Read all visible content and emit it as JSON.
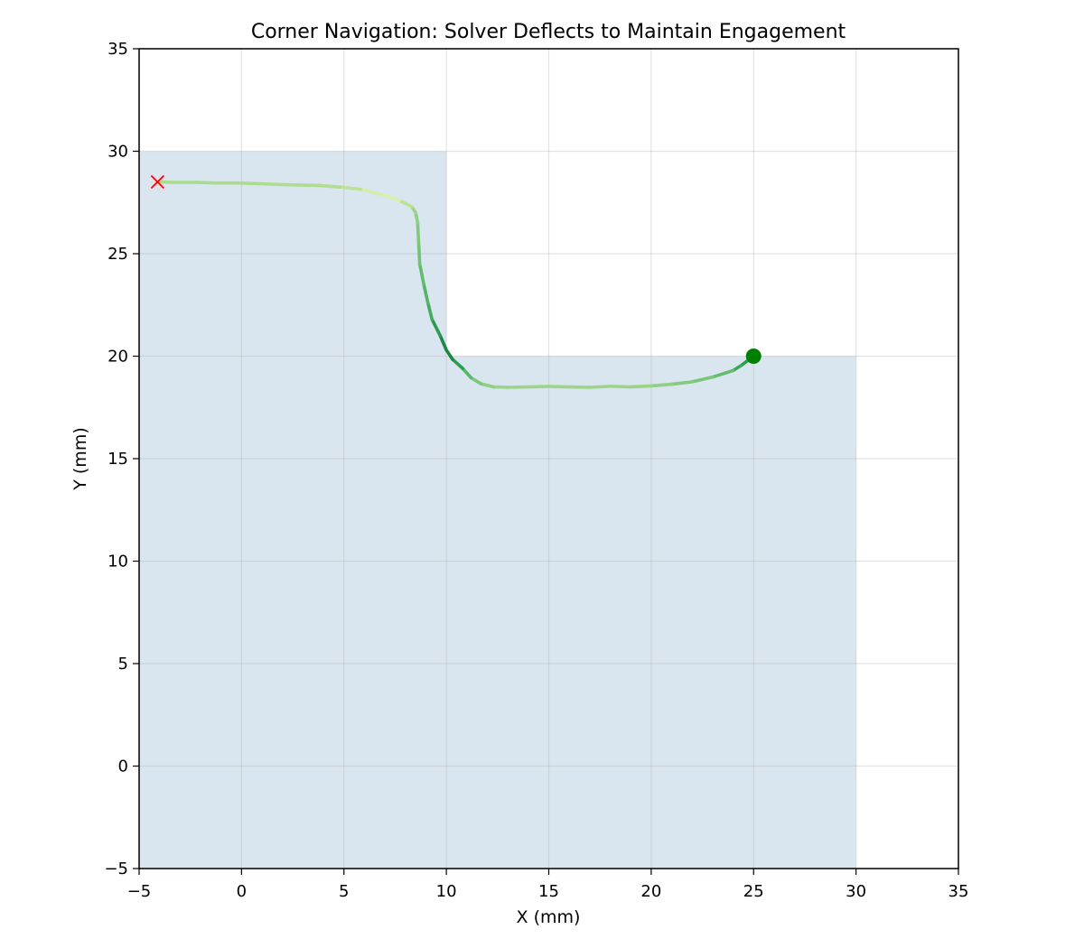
{
  "chart_data": {
    "type": "line",
    "title": "Corner Navigation: Solver Deflects to Maintain Engagement",
    "xlabel": "X (mm)",
    "ylabel": "Y (mm)",
    "xlim": [
      -5,
      35
    ],
    "ylim": [
      -5,
      35
    ],
    "xticks": [
      -5,
      0,
      5,
      10,
      15,
      20,
      25,
      30,
      35
    ],
    "yticks": [
      -5,
      0,
      5,
      10,
      15,
      20,
      25,
      30,
      35
    ],
    "xtick_labels": [
      "−5",
      "0",
      "5",
      "10",
      "15",
      "20",
      "25",
      "30",
      "35"
    ],
    "ytick_labels": [
      "−5",
      "0",
      "5",
      "10",
      "15",
      "20",
      "25",
      "30",
      "35"
    ],
    "grid": true,
    "region": {
      "color": "#c4d6e5",
      "polygon": [
        [
          -5,
          -5
        ],
        [
          30,
          -5
        ],
        [
          30,
          20
        ],
        [
          10,
          20
        ],
        [
          10,
          30
        ],
        [
          -5,
          30
        ]
      ]
    },
    "path": {
      "colormap": [
        "#ffffcc",
        "#c2e699",
        "#78c679",
        "#31a354",
        "#006837"
      ],
      "points": [
        {
          "x": 25.0,
          "y": 20.0,
          "v": 0.75
        },
        {
          "x": 24.4,
          "y": 19.55,
          "v": 0.8
        },
        {
          "x": 24.0,
          "y": 19.3,
          "v": 0.62
        },
        {
          "x": 23.0,
          "y": 18.98,
          "v": 0.52
        },
        {
          "x": 22.0,
          "y": 18.75,
          "v": 0.48
        },
        {
          "x": 21.0,
          "y": 18.63,
          "v": 0.44
        },
        {
          "x": 20.0,
          "y": 18.55,
          "v": 0.4
        },
        {
          "x": 19.0,
          "y": 18.5,
          "v": 0.38
        },
        {
          "x": 18.0,
          "y": 18.53,
          "v": 0.38
        },
        {
          "x": 17.0,
          "y": 18.48,
          "v": 0.38
        },
        {
          "x": 16.0,
          "y": 18.5,
          "v": 0.38
        },
        {
          "x": 15.0,
          "y": 18.52,
          "v": 0.38
        },
        {
          "x": 14.0,
          "y": 18.5,
          "v": 0.38
        },
        {
          "x": 13.0,
          "y": 18.48,
          "v": 0.38
        },
        {
          "x": 12.3,
          "y": 18.5,
          "v": 0.4
        },
        {
          "x": 11.7,
          "y": 18.65,
          "v": 0.45
        },
        {
          "x": 11.2,
          "y": 18.95,
          "v": 0.52
        },
        {
          "x": 10.8,
          "y": 19.4,
          "v": 0.7
        },
        {
          "x": 10.3,
          "y": 19.85,
          "v": 0.85
        },
        {
          "x": 10.0,
          "y": 20.3,
          "v": 0.88
        },
        {
          "x": 9.7,
          "y": 21.0,
          "v": 0.85
        },
        {
          "x": 9.3,
          "y": 21.8,
          "v": 0.72
        },
        {
          "x": 9.1,
          "y": 22.6,
          "v": 0.65
        },
        {
          "x": 8.9,
          "y": 23.5,
          "v": 0.6
        },
        {
          "x": 8.7,
          "y": 24.5,
          "v": 0.55
        },
        {
          "x": 8.65,
          "y": 25.5,
          "v": 0.5
        },
        {
          "x": 8.6,
          "y": 26.5,
          "v": 0.45
        },
        {
          "x": 8.5,
          "y": 27.0,
          "v": 0.4
        },
        {
          "x": 8.3,
          "y": 27.3,
          "v": 0.35
        },
        {
          "x": 7.7,
          "y": 27.6,
          "v": 0.2
        },
        {
          "x": 6.8,
          "y": 27.9,
          "v": 0.1
        },
        {
          "x": 5.8,
          "y": 28.15,
          "v": 0.25
        },
        {
          "x": 4.8,
          "y": 28.25,
          "v": 0.3
        },
        {
          "x": 3.8,
          "y": 28.33,
          "v": 0.32
        },
        {
          "x": 2.8,
          "y": 28.35,
          "v": 0.32
        },
        {
          "x": 1.8,
          "y": 28.38,
          "v": 0.32
        },
        {
          "x": 0.8,
          "y": 28.42,
          "v": 0.32
        },
        {
          "x": -0.2,
          "y": 28.45,
          "v": 0.33
        },
        {
          "x": -1.2,
          "y": 28.45,
          "v": 0.33
        },
        {
          "x": -2.2,
          "y": 28.48,
          "v": 0.33
        },
        {
          "x": -3.2,
          "y": 28.48,
          "v": 0.33
        },
        {
          "x": -4.1,
          "y": 28.5,
          "v": 0.33
        }
      ]
    },
    "start_marker": {
      "x": 25.0,
      "y": 20.0,
      "shape": "circle",
      "color": "#008000"
    },
    "end_marker": {
      "x": -4.1,
      "y": 28.5,
      "shape": "x",
      "color": "#ff0000"
    }
  }
}
